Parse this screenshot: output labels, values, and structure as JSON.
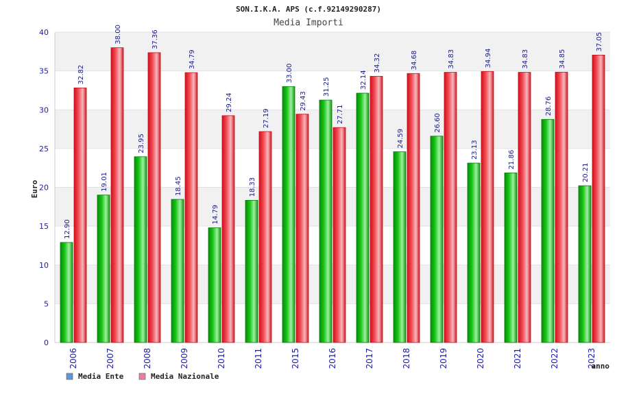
{
  "chart_data": {
    "type": "bar",
    "title": "SON.I.K.A. APS (c.f.92149290287)",
    "subtitle": "Media Importi",
    "xlabel": "anno",
    "ylabel": "Euro",
    "ylim": [
      0,
      40
    ],
    "yticks": [
      "0",
      "5",
      "10",
      "15",
      "20",
      "25",
      "30",
      "35",
      "40"
    ],
    "grid": "horizontal-bands",
    "legend_position": "bottom-left",
    "categories": [
      "2006",
      "2007",
      "2008",
      "2009",
      "2010",
      "2011",
      "2015",
      "2016",
      "2017",
      "2018",
      "2019",
      "2020",
      "2021",
      "2022",
      "2023"
    ],
    "series": [
      {
        "name": "Media Ente",
        "legend_color": "#5b9bd5",
        "bar_color": "#11b511",
        "values": [
          12.9,
          19.01,
          23.95,
          18.45,
          14.79,
          18.33,
          33.0,
          31.25,
          32.14,
          24.59,
          26.6,
          23.13,
          21.86,
          28.76,
          20.21
        ],
        "labels": [
          "12.90",
          "19.01",
          "23.95",
          "18.45",
          "14.79",
          "18.33",
          "33.00",
          "31.25",
          "32.14",
          "24.59",
          "26.60",
          "23.13",
          "21.86",
          "28.76",
          "20.21"
        ]
      },
      {
        "name": "Media Nazionale",
        "legend_color": "#e87fa8",
        "bar_color": "#e8222e",
        "values": [
          32.82,
          38.0,
          37.36,
          34.79,
          29.24,
          27.19,
          29.43,
          27.71,
          34.32,
          34.68,
          34.83,
          34.94,
          34.83,
          34.85,
          37.05
        ],
        "labels": [
          "32.82",
          "38.00",
          "37.36",
          "34.79",
          "29.24",
          "27.19",
          "29.43",
          "27.71",
          "34.32",
          "34.68",
          "34.83",
          "34.94",
          "34.83",
          "34.85",
          "37.05"
        ]
      }
    ]
  }
}
